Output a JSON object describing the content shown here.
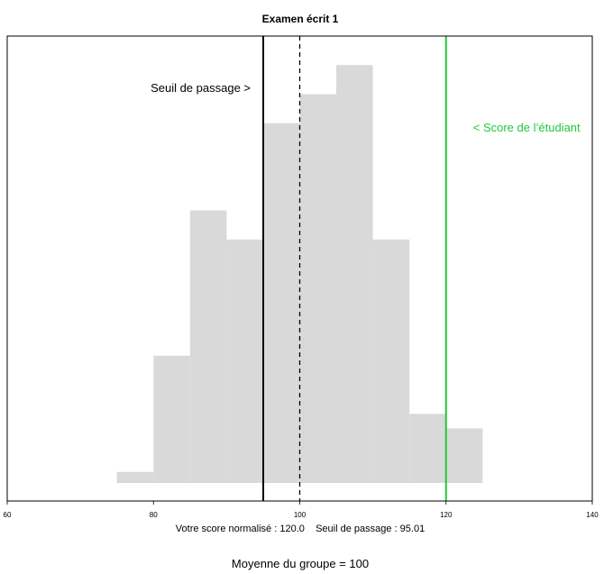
{
  "chart_data": {
    "type": "bar",
    "title": "Examen écrit 1",
    "xlabel": "Votre score normalisé : 120.0    Seuil de passage : 95.01",
    "footer": "Moyenne du groupe = 100",
    "xlim": [
      60,
      140
    ],
    "x_ticks": [
      60,
      80,
      100,
      120,
      140
    ],
    "ylim": [
      0,
      16
    ],
    "bins": [
      {
        "x0": 75,
        "x1": 80,
        "count": 1
      },
      {
        "x0": 80,
        "x1": 85,
        "count": 5
      },
      {
        "x0": 85,
        "x1": 90,
        "count": 10
      },
      {
        "x0": 90,
        "x1": 95,
        "count": 9
      },
      {
        "x0": 95,
        "x1": 100,
        "count": 13
      },
      {
        "x0": 100,
        "x1": 105,
        "count": 14
      },
      {
        "x0": 105,
        "x1": 110,
        "count": 15
      },
      {
        "x0": 110,
        "x1": 115,
        "count": 9
      },
      {
        "x0": 115,
        "x1": 120,
        "count": 3
      },
      {
        "x0": 120,
        "x1": 125,
        "count": 2.5
      }
    ],
    "reference_lines": [
      {
        "x": 95.01,
        "label": "Seuil de passage >",
        "color": "#000000",
        "style": "solid"
      },
      {
        "x": 100,
        "label": "",
        "color": "#000000",
        "style": "dashed"
      },
      {
        "x": 120,
        "label": "< Score de l’étudiant",
        "color": "#22c93b",
        "style": "solid"
      }
    ],
    "bar_color": "#d9d9d9",
    "grid": false
  }
}
